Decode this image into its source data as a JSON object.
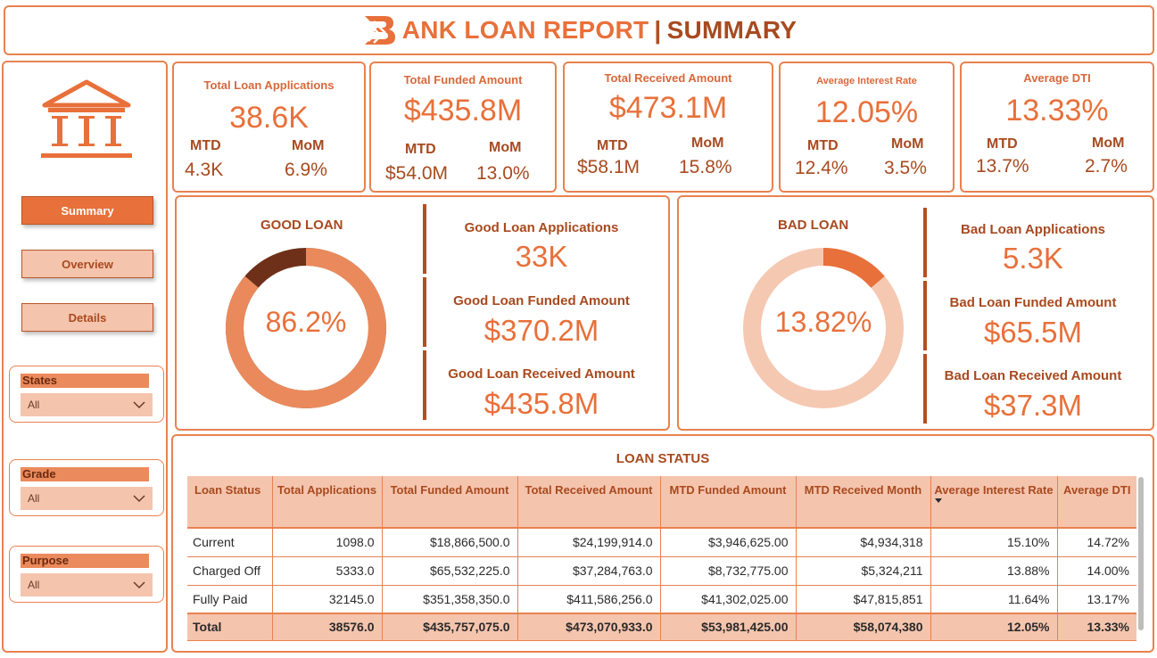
{
  "header": {
    "title_main": "ANK LOAN REPORT",
    "title_sep": "|",
    "title_sub": "SUMMARY"
  },
  "sidebar": {
    "nav": [
      {
        "label": "Summary",
        "active": true
      },
      {
        "label": "Overview",
        "active": false
      },
      {
        "label": "Details",
        "active": false
      }
    ],
    "slicers": [
      {
        "label": "States",
        "value": "All"
      },
      {
        "label": "Grade",
        "value": "All"
      },
      {
        "label": "Purpose",
        "value": "All"
      }
    ]
  },
  "kpis": [
    {
      "title": "Total Loan Applications",
      "value": "38.6K",
      "mtd_label": "MTD",
      "mtd": "4.3K",
      "mom_label": "MoM",
      "mom": "6.9%"
    },
    {
      "title": "Total Funded Amount",
      "value": "$435.8M",
      "mtd_label": "MTD",
      "mtd": "$54.0M",
      "mom_label": "MoM",
      "mom": "13.0%"
    },
    {
      "title": "Total Received Amount",
      "value": "$473.1M",
      "mtd_label": "MTD",
      "mtd": "$58.1M",
      "mom_label": "MoM",
      "mom": "15.8%"
    },
    {
      "title": "Average Interest Rate",
      "value": "12.05%",
      "mtd_label": "MTD",
      "mtd": "12.4%",
      "mom_label": "MoM",
      "mom": "3.5%"
    },
    {
      "title": "Average DTI",
      "value": "13.33%",
      "mtd_label": "MTD",
      "mtd": "13.7%",
      "mom_label": "MoM",
      "mom": "2.7%"
    }
  ],
  "good_loan": {
    "title": "GOOD LOAN",
    "percent_label": "86.2%",
    "percent": 86.2,
    "applications_label": "Good Loan Applications",
    "applications": "33K",
    "funded_label": "Good Loan Funded Amount",
    "funded": "$370.2M",
    "received_label": "Good Loan Received Amount",
    "received": "$435.8M",
    "colors": {
      "main": "#ea8a5c",
      "rest": "#6e3018"
    }
  },
  "bad_loan": {
    "title": "BAD LOAN",
    "percent_label": "13.82%",
    "percent": 13.82,
    "applications_label": "Bad Loan Applications",
    "applications": "5.3K",
    "funded_label": "Bad Loan Funded Amount",
    "funded": "$65.5M",
    "received_label": "Bad Loan Received Amount",
    "received": "$37.3M",
    "colors": {
      "main": "#e8703a",
      "rest": "#f5c8b2"
    }
  },
  "loan_status": {
    "title": "LOAN STATUS",
    "headers": [
      "Loan Status",
      "Total Applications",
      "Total Funded Amount",
      "Total Received Amount",
      "MTD Funded Amount",
      "MTD Received Month",
      "Average Interest Rate",
      "Average DTI"
    ],
    "rows": [
      [
        "Current",
        "1098.0",
        "$18,866,500.0",
        "$24,199,914.0",
        "$3,946,625.00",
        "$4,934,318",
        "15.10%",
        "14.72%"
      ],
      [
        "Charged Off",
        "5333.0",
        "$65,532,225.0",
        "$37,284,763.0",
        "$8,732,775.00",
        "$5,324,211",
        "13.88%",
        "14.00%"
      ],
      [
        "Fully Paid",
        "32145.0",
        "$351,358,350.0",
        "$411,586,256.0",
        "$41,302,025.00",
        "$47,815,851",
        "11.64%",
        "13.17%"
      ]
    ],
    "total": [
      "Total",
      "38576.0",
      "$435,757,075.0",
      "$473,070,933.0",
      "$53,981,425.00",
      "$58,074,380",
      "12.05%",
      "13.33%"
    ]
  },
  "colors": {
    "accent": "#e8703a",
    "dark": "#a84a1f",
    "light": "#f5c4ad",
    "border": "#e8824f"
  }
}
